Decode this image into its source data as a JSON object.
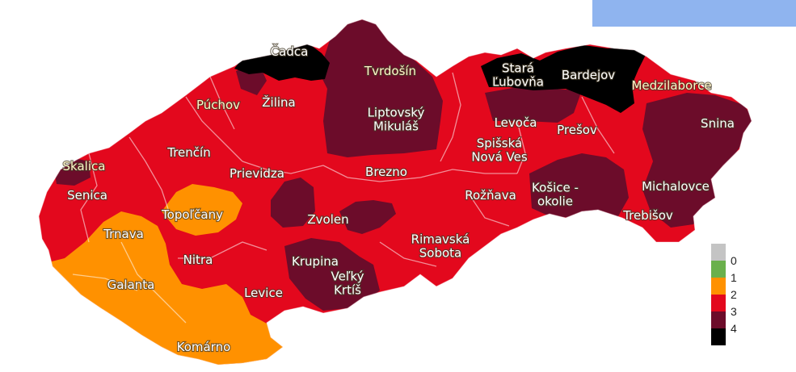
{
  "colors": {
    "top_bar": "#8fb4ef",
    "level_0": "#c4c4c4",
    "level_1": "#6ab04c",
    "level_2": "#ff9100",
    "level_3": "#e3081d",
    "level_4": "#6c0c2a",
    "level_5": "#000000"
  },
  "districts": [
    {
      "id": "cadca",
      "label": "Čadca",
      "level": 5
    },
    {
      "id": "tvrdosin",
      "label": "Tvrdošín",
      "level": 4
    },
    {
      "id": "stara-lubovna",
      "label": "Stará\nĽubovňa",
      "level": 5
    },
    {
      "id": "bardejov",
      "label": "Bardejov",
      "level": 5
    },
    {
      "id": "medzilaborce",
      "label": "Medzilaborce",
      "level": 3
    },
    {
      "id": "puchov",
      "label": "Púchov",
      "level": 3
    },
    {
      "id": "zilina",
      "label": "Žilina",
      "level": 3
    },
    {
      "id": "liptovsky-mikulas",
      "label": "Liptovský\nMikuláš",
      "level": 4
    },
    {
      "id": "levoca",
      "label": "Levoča",
      "level": 4
    },
    {
      "id": "presov",
      "label": "Prešov",
      "level": 3
    },
    {
      "id": "snina",
      "label": "Snina",
      "level": 4
    },
    {
      "id": "trencin",
      "label": "Trenčín",
      "level": 3
    },
    {
      "id": "spisska-nova-ves",
      "label": "Spišská\nNová Ves",
      "level": 3
    },
    {
      "id": "skalica",
      "label": "Skalica",
      "level": 4
    },
    {
      "id": "prievidza",
      "label": "Prievidza",
      "level": 3
    },
    {
      "id": "brezno",
      "label": "Brezno",
      "level": 3
    },
    {
      "id": "senica",
      "label": "Senica",
      "level": 3
    },
    {
      "id": "roznava",
      "label": "Rožňava",
      "level": 3
    },
    {
      "id": "kosice-okolie",
      "label": "Košice -\nokolie",
      "level": 4
    },
    {
      "id": "michalovce",
      "label": "Michalovce",
      "level": 4
    },
    {
      "id": "topolcany",
      "label": "Topoľčany",
      "level": 2
    },
    {
      "id": "zvolen",
      "label": "Zvolen",
      "level": 4
    },
    {
      "id": "trebisov",
      "label": "Trebišov",
      "level": 4
    },
    {
      "id": "trnava",
      "label": "Trnava",
      "level": 2
    },
    {
      "id": "rimavska-sobota",
      "label": "Rimavská\nSobota",
      "level": 3
    },
    {
      "id": "nitra",
      "label": "Nitra",
      "level": 3
    },
    {
      "id": "krupina",
      "label": "Krupina",
      "level": 4
    },
    {
      "id": "galanta",
      "label": "Galanta",
      "level": 2
    },
    {
      "id": "velky-krtis",
      "label": "Veľký\nKrtíš",
      "level": 4
    },
    {
      "id": "levice",
      "label": "Levice",
      "level": 3
    },
    {
      "id": "komarno",
      "label": "Komárno",
      "level": 2
    }
  ],
  "legend": [
    {
      "label": "0",
      "color_key": "level_0"
    },
    {
      "label": "1",
      "color_key": "level_1"
    },
    {
      "label": "2",
      "color_key": "level_2"
    },
    {
      "label": "3",
      "color_key": "level_3"
    },
    {
      "label": "4",
      "color_key": "level_4"
    },
    {
      "label": "",
      "color_key": "level_5"
    }
  ]
}
